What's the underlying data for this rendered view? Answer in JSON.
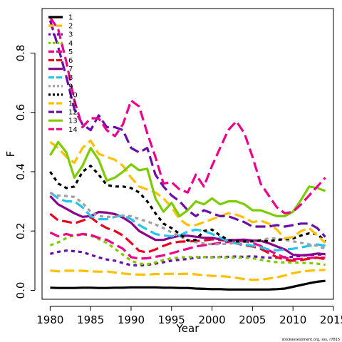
{
  "chart_data": {
    "type": "line",
    "xlabel": "Year",
    "ylabel": "F",
    "xlim": [
      1979,
      2015
    ],
    "ylim": [
      -0.03,
      0.95
    ],
    "xticks": [
      "1980",
      "1985",
      "1990",
      "1995",
      "2000",
      "2005",
      "2010",
      "2015"
    ],
    "yticks": [
      "0.0",
      "0.2",
      "0.4",
      "0.6",
      "0.8"
    ],
    "legend_position": "top-left",
    "caption": "stockassessment.org, sss, r7815",
    "x": [
      1980,
      1981,
      1982,
      1983,
      1984,
      1985,
      1986,
      1987,
      1988,
      1989,
      1990,
      1991,
      1992,
      1993,
      1994,
      1995,
      1996,
      1997,
      1998,
      1999,
      2000,
      2001,
      2002,
      2003,
      2004,
      2005,
      2006,
      2007,
      2008,
      2009,
      2010,
      2011,
      2012,
      2013,
      2014
    ],
    "series": [
      {
        "name": "1",
        "color": "#000000",
        "dash": "solid",
        "values": [
          0.009,
          0.008,
          0.008,
          0.008,
          0.009,
          0.009,
          0.008,
          0.008,
          0.009,
          0.009,
          0.01,
          0.01,
          0.01,
          0.01,
          0.009,
          0.009,
          0.008,
          0.008,
          0.006,
          0.005,
          0.004,
          0.004,
          0.003,
          0.003,
          0.003,
          0.003,
          0.003,
          0.003,
          0.004,
          0.006,
          0.012,
          0.018,
          0.024,
          0.029,
          0.032
        ]
      },
      {
        "name": "2",
        "color": "#FFC000",
        "dash": "long",
        "values": [
          0.067,
          0.064,
          0.066,
          0.066,
          0.066,
          0.064,
          0.063,
          0.064,
          0.06,
          0.057,
          0.054,
          0.053,
          0.053,
          0.055,
          0.055,
          0.056,
          0.055,
          0.056,
          0.054,
          0.051,
          0.049,
          0.048,
          0.046,
          0.042,
          0.038,
          0.035,
          0.036,
          0.04,
          0.044,
          0.05,
          0.058,
          0.063,
          0.066,
          0.068,
          0.069
        ]
      },
      {
        "name": "3",
        "color": "#6A0DAD",
        "dash": "dot",
        "values": [
          0.123,
          0.13,
          0.134,
          0.132,
          0.129,
          0.12,
          0.111,
          0.104,
          0.1,
          0.092,
          0.085,
          0.084,
          0.086,
          0.09,
          0.095,
          0.1,
          0.103,
          0.106,
          0.11,
          0.112,
          0.112,
          0.113,
          0.113,
          0.114,
          0.113,
          0.115,
          0.112,
          0.11,
          0.11,
          0.112,
          0.113,
          0.116,
          0.119,
          0.121,
          0.12
        ]
      },
      {
        "name": "4",
        "color": "#7CCD00",
        "dash": "dot",
        "values": [
          0.152,
          0.162,
          0.176,
          0.187,
          0.189,
          0.185,
          0.173,
          0.16,
          0.14,
          0.12,
          0.1,
          0.09,
          0.088,
          0.094,
          0.102,
          0.108,
          0.111,
          0.112,
          0.113,
          0.112,
          0.111,
          0.112,
          0.11,
          0.111,
          0.11,
          0.108,
          0.103,
          0.098,
          0.095,
          0.094,
          0.094,
          0.093,
          0.092,
          0.09,
          0.086
        ]
      },
      {
        "name": "5",
        "color": "#EC008C",
        "dash": "long",
        "values": [
          0.195,
          0.182,
          0.19,
          0.183,
          0.19,
          0.187,
          0.177,
          0.17,
          0.155,
          0.14,
          0.112,
          0.107,
          0.108,
          0.113,
          0.118,
          0.125,
          0.133,
          0.14,
          0.148,
          0.152,
          0.156,
          0.16,
          0.163,
          0.166,
          0.165,
          0.16,
          0.15,
          0.135,
          0.122,
          0.11,
          0.105,
          0.106,
          0.109,
          0.111,
          0.11
        ]
      },
      {
        "name": "6",
        "color": "#E8001C",
        "dash": "long",
        "values": [
          0.258,
          0.236,
          0.232,
          0.226,
          0.235,
          0.247,
          0.225,
          0.21,
          0.2,
          0.185,
          0.16,
          0.133,
          0.128,
          0.138,
          0.15,
          0.16,
          0.164,
          0.165,
          0.166,
          0.168,
          0.172,
          0.17,
          0.166,
          0.158,
          0.152,
          0.148,
          0.14,
          0.126,
          0.112,
          0.103,
          0.1,
          0.102,
          0.107,
          0.11,
          0.105
        ]
      },
      {
        "name": "7",
        "color": "#8B008B",
        "dash": "solid",
        "values": [
          0.318,
          0.29,
          0.275,
          0.26,
          0.248,
          0.25,
          0.264,
          0.262,
          0.257,
          0.245,
          0.228,
          0.2,
          0.185,
          0.17,
          0.17,
          0.178,
          0.184,
          0.184,
          0.181,
          0.177,
          0.177,
          0.172,
          0.169,
          0.17,
          0.171,
          0.168,
          0.167,
          0.159,
          0.148,
          0.138,
          0.12,
          0.118,
          0.12,
          0.124,
          0.122
        ]
      },
      {
        "name": "8",
        "color": "#22C4F0",
        "dash": "long",
        "values": [
          0.33,
          0.31,
          0.3,
          0.3,
          0.28,
          0.25,
          0.24,
          0.24,
          0.248,
          0.252,
          0.24,
          0.22,
          0.205,
          0.19,
          0.185,
          0.182,
          0.185,
          0.198,
          0.205,
          0.2,
          0.19,
          0.178,
          0.165,
          0.158,
          0.155,
          0.15,
          0.145,
          0.138,
          0.135,
          0.138,
          0.14,
          0.145,
          0.15,
          0.155,
          0.15
        ]
      },
      {
        "name": "9",
        "color": "#A0A0A0",
        "dash": "dot",
        "values": [
          0.328,
          0.32,
          0.318,
          0.315,
          0.295,
          0.265,
          0.25,
          0.248,
          0.248,
          0.252,
          0.25,
          0.24,
          0.232,
          0.222,
          0.21,
          0.195,
          0.182,
          0.17,
          0.162,
          0.158,
          0.155,
          0.156,
          0.157,
          0.16,
          0.163,
          0.165,
          0.17,
          0.175,
          0.175,
          0.17,
          0.165,
          0.16,
          0.155,
          0.15,
          0.14
        ]
      },
      {
        "name": "10",
        "color": "#000000",
        "dash": "dot",
        "values": [
          0.4,
          0.36,
          0.345,
          0.35,
          0.4,
          0.42,
          0.39,
          0.355,
          0.35,
          0.35,
          0.345,
          0.33,
          0.3,
          0.26,
          0.225,
          0.21,
          0.19,
          0.168,
          0.17,
          0.2,
          0.205,
          0.185,
          0.17,
          0.165,
          0.165,
          0.165,
          0.168,
          0.165,
          0.17,
          0.172,
          0.175,
          0.185,
          0.192,
          0.19,
          0.165
        ]
      },
      {
        "name": "11",
        "color": "#FFC000",
        "dash": "long",
        "values": [
          0.5,
          0.48,
          0.45,
          0.43,
          0.48,
          0.505,
          0.46,
          0.45,
          0.44,
          0.42,
          0.38,
          0.35,
          0.34,
          0.33,
          0.31,
          0.28,
          0.24,
          0.22,
          0.22,
          0.23,
          0.24,
          0.25,
          0.26,
          0.255,
          0.245,
          0.23,
          0.235,
          0.225,
          0.205,
          0.175,
          0.18,
          0.2,
          0.21,
          0.185,
          0.16
        ]
      },
      {
        "name": "12",
        "color": "#6A0DAD",
        "dash": "long",
        "values": [
          0.91,
          0.82,
          0.72,
          0.61,
          0.56,
          0.54,
          0.59,
          0.55,
          0.55,
          0.54,
          0.48,
          0.465,
          0.48,
          0.39,
          0.35,
          0.32,
          0.3,
          0.27,
          0.25,
          0.27,
          0.26,
          0.25,
          0.25,
          0.24,
          0.23,
          0.215,
          0.215,
          0.215,
          0.22,
          0.215,
          0.22,
          0.225,
          0.225,
          0.21,
          0.18
        ]
      },
      {
        "name": "13",
        "color": "#7CCD00",
        "dash": "solid",
        "values": [
          0.455,
          0.5,
          0.465,
          0.38,
          0.42,
          0.48,
          0.44,
          0.37,
          0.38,
          0.4,
          0.425,
          0.405,
          0.41,
          0.31,
          0.265,
          0.295,
          0.25,
          0.27,
          0.3,
          0.29,
          0.31,
          0.29,
          0.3,
          0.3,
          0.29,
          0.27,
          0.27,
          0.26,
          0.25,
          0.25,
          0.265,
          0.305,
          0.35,
          0.345,
          0.335
        ]
      },
      {
        "name": "14",
        "color": "#EC008C",
        "dash": "long",
        "values": [
          0.92,
          0.88,
          0.77,
          0.64,
          0.55,
          0.58,
          0.58,
          0.54,
          0.52,
          0.56,
          0.64,
          0.62,
          0.53,
          0.45,
          0.36,
          0.365,
          0.34,
          0.33,
          0.39,
          0.35,
          0.42,
          0.48,
          0.54,
          0.57,
          0.53,
          0.45,
          0.36,
          0.32,
          0.28,
          0.26,
          0.265,
          0.29,
          0.32,
          0.35,
          0.38
        ]
      }
    ]
  }
}
